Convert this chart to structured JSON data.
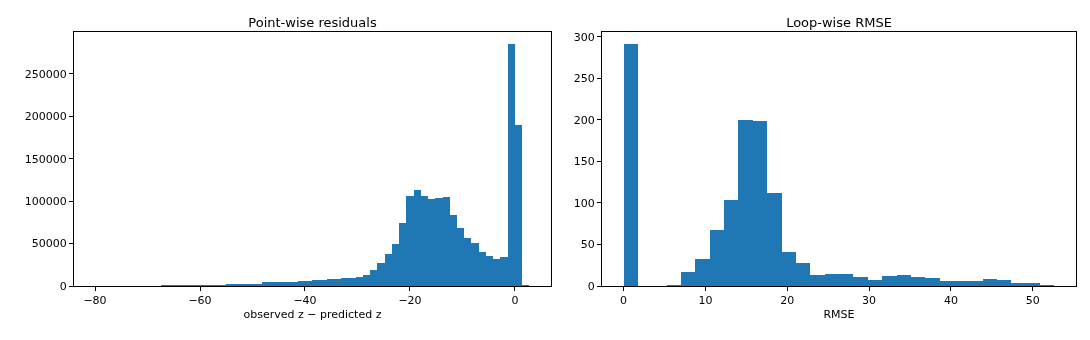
{
  "chart_data": [
    {
      "type": "histogram",
      "title": "Point-wise residuals",
      "xlabel": "observed z − predicted z",
      "color": "#1f77b4",
      "bins": [
        -79.9,
        -78.52,
        -77.15,
        -75.77,
        -74.39,
        -73.02,
        -71.64,
        -70.26,
        -68.88,
        -67.51,
        -66.13,
        -64.75,
        -63.38,
        -62.0,
        -60.62,
        -59.25,
        -57.87,
        -56.49,
        -55.11,
        -53.74,
        -52.36,
        -50.98,
        -49.61,
        -48.23,
        -46.85,
        -45.48,
        -44.1,
        -42.72,
        -41.34,
        -39.97,
        -38.59,
        -37.21,
        -35.84,
        -34.46,
        -33.08,
        -31.71,
        -30.33,
        -28.95,
        -27.57,
        -26.2,
        -24.82,
        -23.44,
        -22.07,
        -20.69,
        -19.31,
        -17.94,
        -16.56,
        -15.18,
        -13.8,
        -12.43,
        -11.05,
        -9.67,
        -8.3,
        -6.92,
        -5.54,
        -4.17,
        -2.79,
        -1.41,
        -0.03,
        1.34,
        2.72
      ],
      "values": [
        0,
        0,
        0,
        0,
        0,
        0,
        0,
        0,
        0,
        500,
        500,
        500,
        500,
        500,
        500,
        500,
        500,
        500,
        1500,
        1500,
        1500,
        1500,
        2500,
        4300,
        4300,
        4300,
        4300,
        4300,
        5500,
        5500,
        7000,
        7000,
        8200,
        8200,
        9400,
        9400,
        10600,
        12900,
        18800,
        26700,
        37600,
        49400,
        74500,
        105900,
        112900,
        105900,
        102400,
        103100,
        104700,
        83500,
        68200,
        56500,
        50600,
        40000,
        35300,
        31800,
        34100,
        285000,
        189400,
        800
      ],
      "xlim": [
        -84,
        6.86
      ],
      "xticks": [
        -80,
        -60,
        -40,
        -20,
        0
      ],
      "ylim": [
        0,
        299250
      ],
      "yticks": [
        0,
        50000,
        100000,
        150000,
        200000,
        250000
      ],
      "grid": false
    },
    {
      "type": "histogram",
      "title": "Loop-wise RMSE",
      "xlabel": "RMSE",
      "color": "#1f77b4",
      "bins": [
        0,
        1.76,
        3.51,
        5.27,
        7.02,
        8.78,
        10.53,
        12.29,
        14.04,
        15.8,
        17.55,
        19.31,
        21.06,
        22.82,
        24.57,
        26.33,
        28.08,
        29.84,
        31.59,
        33.35,
        35.1,
        36.86,
        38.61,
        40.37,
        42.12,
        43.88,
        45.63,
        47.39,
        49.14,
        50.9,
        52.65
      ],
      "values": [
        291,
        0,
        0,
        1,
        17,
        32,
        67,
        103,
        200,
        198,
        112,
        41,
        28,
        13,
        14,
        14,
        11,
        7,
        12,
        13,
        11,
        10,
        6,
        6,
        6,
        8,
        7,
        4,
        4,
        1
      ],
      "xlim": [
        -2.63,
        55.28
      ],
      "xticks": [
        0,
        10,
        20,
        30,
        40,
        50
      ],
      "ylim": [
        0,
        305.6
      ],
      "yticks": [
        0,
        50,
        100,
        150,
        200,
        250,
        300
      ],
      "grid": false
    }
  ]
}
